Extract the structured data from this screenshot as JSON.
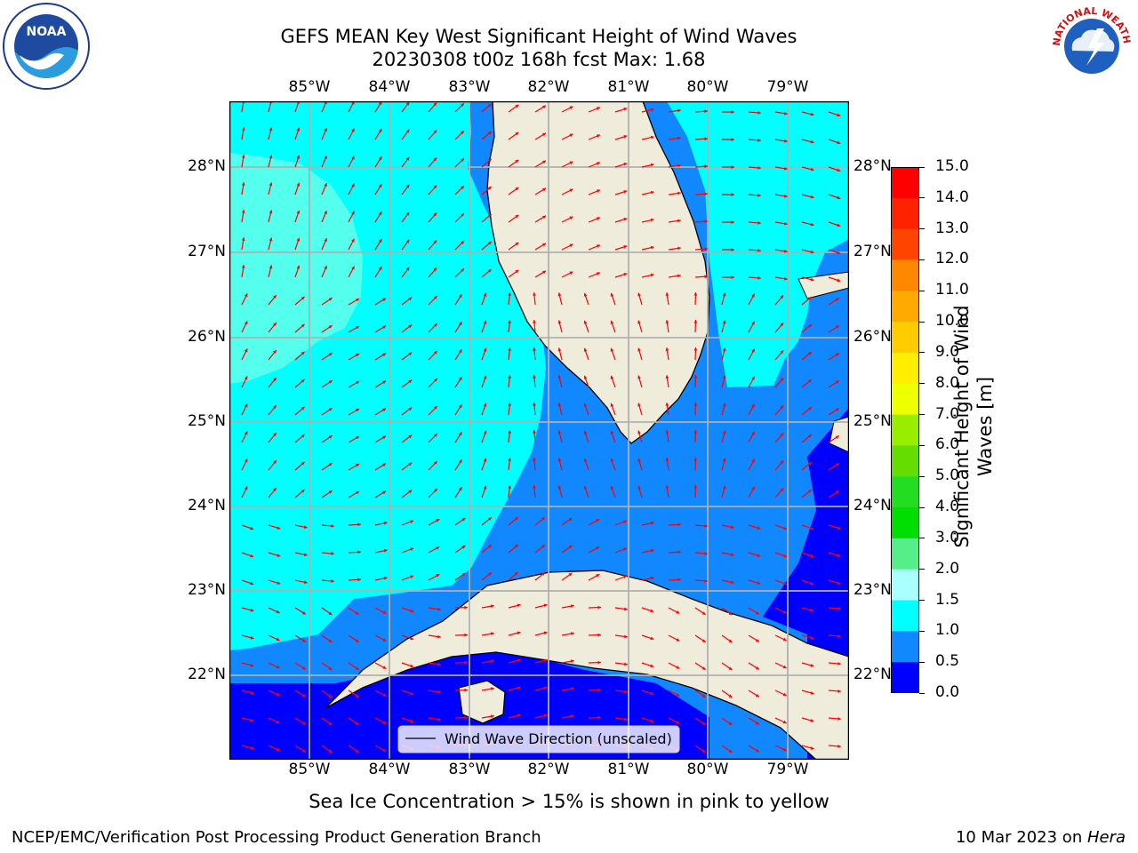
{
  "title": {
    "line1": "GEFS MEAN Key West Significant Height of Wind Waves",
    "line2": "20230308 t00z 168h fcst   Max: 1.68"
  },
  "map": {
    "lon_labels": [
      "85°W",
      "84°W",
      "83°W",
      "82°W",
      "81°W",
      "80°W",
      "79°W"
    ],
    "lat_labels": [
      "28°N",
      "27°N",
      "26°N",
      "25°N",
      "24°N",
      "23°N",
      "22°N"
    ],
    "legend_label": "Wind Wave Direction (unscaled)",
    "land_color": "#efecdc",
    "arrow_color": "#ff0000"
  },
  "colorbar": {
    "label": "Significant Height of Wind Waves [m]",
    "label_line1": "Significant Height of Wind",
    "label_line2": "Waves [m]",
    "ticks": [
      "15.0",
      "14.0",
      "13.0",
      "12.0",
      "11.0",
      "10.0",
      "9.0",
      "8.0",
      "7.0",
      "6.0",
      "5.0",
      "4.0",
      "3.0",
      "2.0",
      "1.5",
      "1.0",
      "0.5",
      "0.0"
    ],
    "colors": [
      "#ff0000",
      "#ff2200",
      "#ff4400",
      "#ff6600",
      "#ff8800",
      "#ffaa00",
      "#ffcc00",
      "#ffee00",
      "#eeff00",
      "#ccff00",
      "#99ee00",
      "#66dd00",
      "#22dd22",
      "#00dd00",
      "#55ee88",
      "#aaffff",
      "#55ffee",
      "#00ffff",
      "#1188ff",
      "#0000ff"
    ]
  },
  "note": "Sea Ice Concentration > 15% is shown in pink to yellow",
  "footer": {
    "left": "NCEP/EMC/Verification Post Processing Product Generation Branch",
    "right_prefix": "10 Mar 2023 on ",
    "right_host": "Hera"
  },
  "logos": {
    "left": "NOAA",
    "right": "NATIONAL WEATHER SERVICE"
  }
}
